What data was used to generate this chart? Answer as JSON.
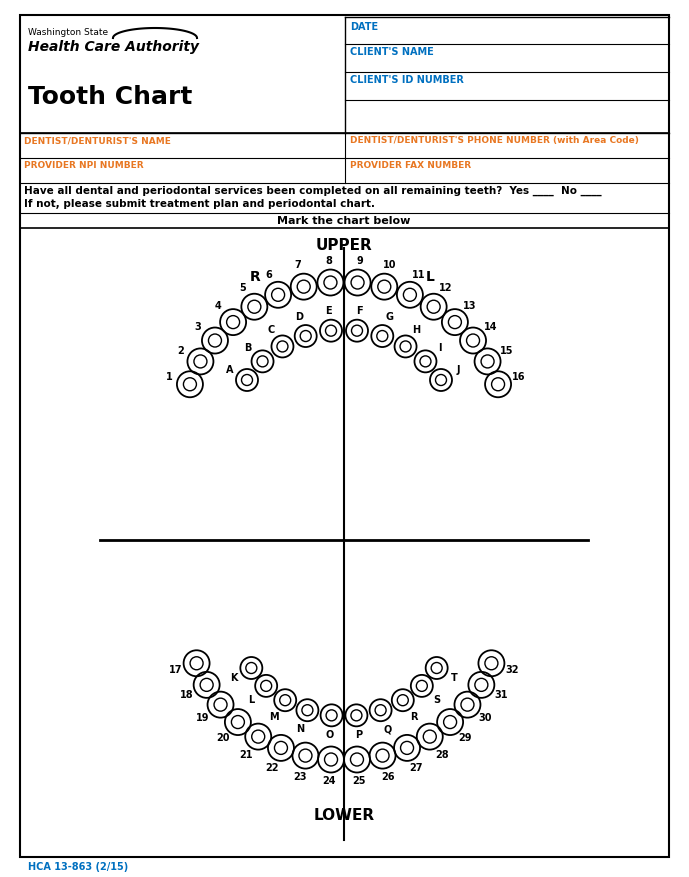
{
  "title": "Tooth Chart",
  "agency_line1": "Washington State",
  "agency_line2": "Health Care Authority",
  "date_label": "DATE",
  "clients_name_label": "CLIENT'S NAME",
  "clients_id_label": "CLIENT'S ID NUMBER",
  "dentist_name_label": "DENTIST/DENTURIST'S NAME",
  "dentist_phone_label": "DENTIST/DENTURIST'S PHONE NUMBER (with Area Code)",
  "npi_label": "PROVIDER NPI NUMBER",
  "fax_label": "PROVIDER FAX NUMBER",
  "question_text": "Have all dental and periodontal services been completed on all remaining teeth?  Yes ____  No ____",
  "question_text2": "If not, please submit treatment plan and periodontal chart.",
  "mark_text": "Mark the chart below",
  "upper_label": "UPPER",
  "lower_label": "LOWER",
  "r_label": "R",
  "l_label": "L",
  "footer": "HCA 13-863 (2/15)",
  "orange_color": "#E87722",
  "blue_color": "#0070C0",
  "bg_color": "#FFFFFF",
  "upper_adult_numbers": [
    1,
    2,
    3,
    4,
    5,
    6,
    7,
    8,
    9,
    10,
    11,
    12,
    13,
    14,
    15,
    16
  ],
  "upper_child_letters": [
    "A",
    "B",
    "C",
    "D",
    "E",
    "F",
    "G",
    "H",
    "I",
    "J"
  ],
  "lower_adult_numbers": [
    32,
    31,
    30,
    29,
    28,
    27,
    26,
    25,
    24,
    23,
    22,
    21,
    20,
    19,
    18,
    17
  ],
  "lower_child_letters": [
    "T",
    "S",
    "R",
    "Q",
    "P",
    "O",
    "N",
    "M",
    "L",
    "K"
  ]
}
